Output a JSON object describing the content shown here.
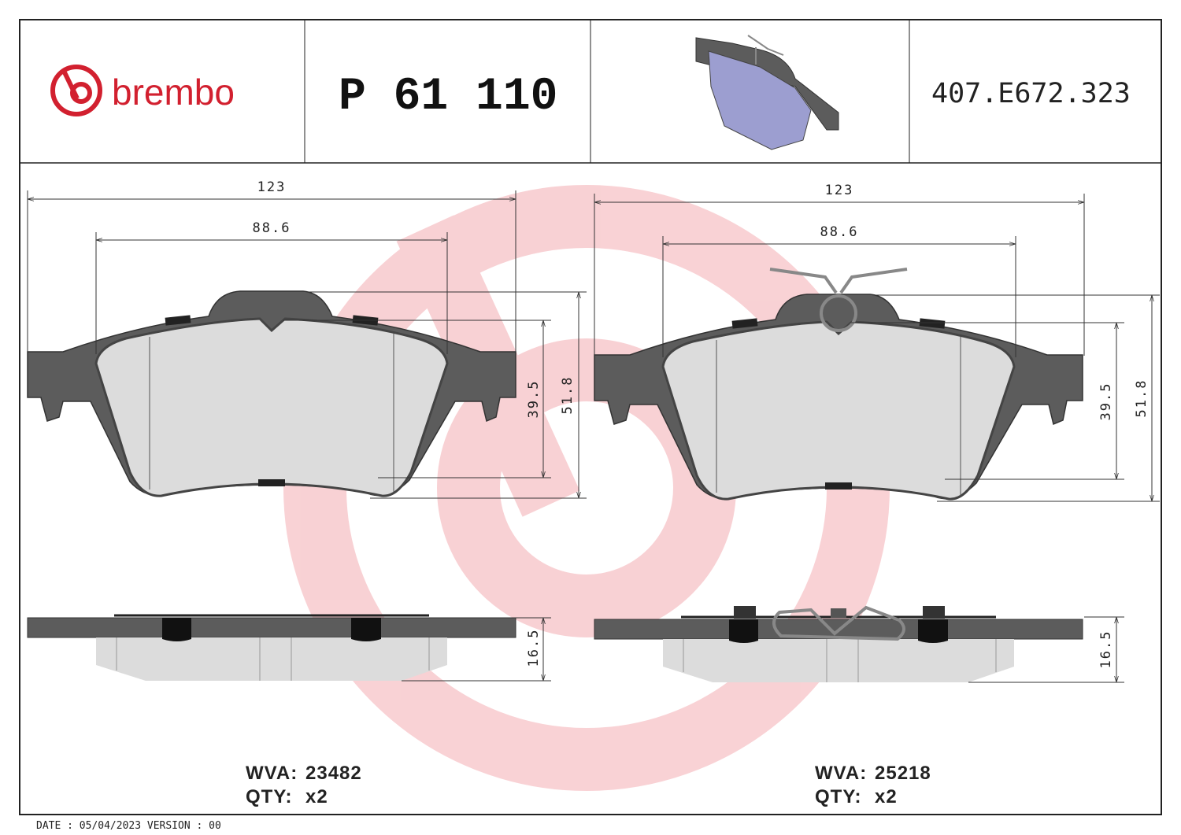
{
  "header": {
    "brand": "brembo",
    "part_number": "P 61 110",
    "code": "407.E672.323"
  },
  "views": [
    {
      "dimensions": {
        "overall_width": "123",
        "pad_width": "88.6",
        "pad_height": "39.5",
        "overall_height": "51.8",
        "thickness": "16.5"
      },
      "wva_label": "WVA:",
      "wva": "23482",
      "qty_label": "QTY:",
      "qty": "x2"
    },
    {
      "dimensions": {
        "overall_width": "123",
        "pad_width": "88.6",
        "pad_height": "39.5",
        "overall_height": "51.8",
        "thickness": "16.5"
      },
      "wva_label": "WVA:",
      "wva": "25218",
      "qty_label": "QTY:",
      "qty": "x2"
    }
  ],
  "footer": "DATE : 05/04/2023 VERSION : 00"
}
